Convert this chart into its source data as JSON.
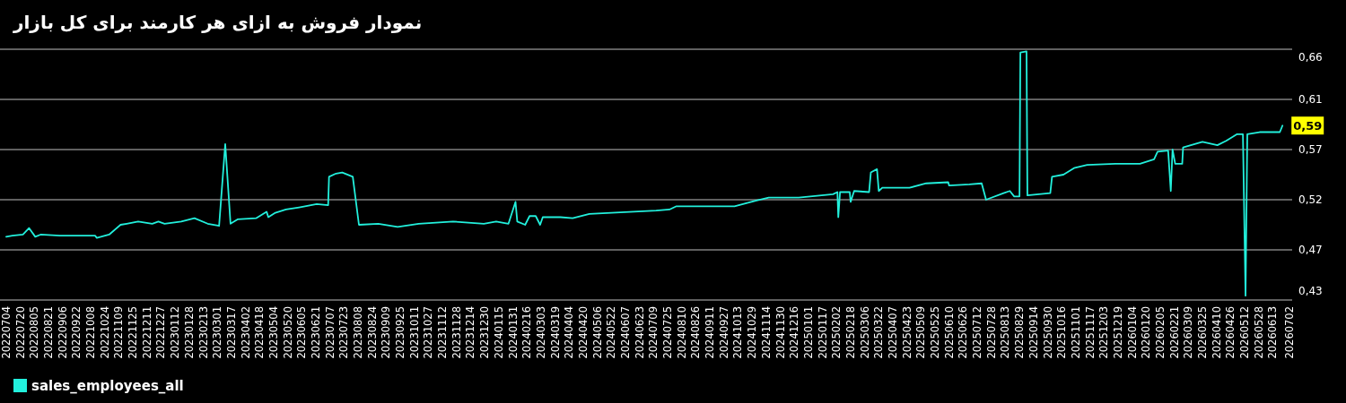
{
  "chart_data": {
    "type": "line",
    "title": "نمودار فروش به ازای هر کارمند برای کل بازار",
    "legend": "bottom left",
    "grid": "y",
    "line_style": "solid",
    "marker": "none",
    "xlim": [
      "2022-07-01",
      "2026-07-05"
    ],
    "ylim": [
      0.428,
      0.658
    ],
    "yticks": [
      {
        "value": 0.428,
        "label": "0,43"
      },
      {
        "value": 0.474,
        "label": "0,47"
      },
      {
        "value": 0.52,
        "label": "0,52"
      },
      {
        "value": 0.566,
        "label": "0,57"
      },
      {
        "value": 0.612,
        "label": "0,61"
      },
      {
        "value": 0.658,
        "label": "0,66"
      }
    ],
    "xticks": [
      {
        "value": "2022-07-04",
        "label": "20220704"
      },
      {
        "value": "2022-07-20",
        "label": "20220720"
      },
      {
        "value": "2022-08-05",
        "label": "20220805"
      },
      {
        "value": "2022-08-21",
        "label": "20220821"
      },
      {
        "value": "2022-09-06",
        "label": "20220906"
      },
      {
        "value": "2022-09-22",
        "label": "20220922"
      },
      {
        "value": "2022-10-08",
        "label": "20221008"
      },
      {
        "value": "2022-10-24",
        "label": "20221024"
      },
      {
        "value": "2022-11-09",
        "label": "20221109"
      },
      {
        "value": "2022-11-25",
        "label": "20221125"
      },
      {
        "value": "2022-12-11",
        "label": "20221211"
      },
      {
        "value": "2022-12-27",
        "label": "20221227"
      },
      {
        "value": "2023-01-12",
        "label": "20230112"
      },
      {
        "value": "2023-01-28",
        "label": "20230128"
      },
      {
        "value": "2023-02-13",
        "label": "20230213"
      },
      {
        "value": "2023-03-01",
        "label": "20230301"
      },
      {
        "value": "2023-03-17",
        "label": "20230317"
      },
      {
        "value": "2023-04-02",
        "label": "20230402"
      },
      {
        "value": "2023-04-18",
        "label": "20230418"
      },
      {
        "value": "2023-05-04",
        "label": "20230504"
      },
      {
        "value": "2023-05-20",
        "label": "20230520"
      },
      {
        "value": "2023-06-05",
        "label": "20230605"
      },
      {
        "value": "2023-06-21",
        "label": "20230621"
      },
      {
        "value": "2023-07-07",
        "label": "20230707"
      },
      {
        "value": "2023-07-23",
        "label": "20230723"
      },
      {
        "value": "2023-08-08",
        "label": "20230808"
      },
      {
        "value": "2023-08-24",
        "label": "20230824"
      },
      {
        "value": "2023-09-09",
        "label": "20230909"
      },
      {
        "value": "2023-09-25",
        "label": "20230925"
      },
      {
        "value": "2023-10-11",
        "label": "20231011"
      },
      {
        "value": "2023-10-27",
        "label": "20231027"
      },
      {
        "value": "2023-11-12",
        "label": "20231112"
      },
      {
        "value": "2023-11-28",
        "label": "20231128"
      },
      {
        "value": "2023-12-14",
        "label": "20231214"
      },
      {
        "value": "2023-12-30",
        "label": "20231230"
      },
      {
        "value": "2024-01-15",
        "label": "20240115"
      },
      {
        "value": "2024-01-31",
        "label": "20240131"
      },
      {
        "value": "2024-02-16",
        "label": "20240216"
      },
      {
        "value": "2024-03-03",
        "label": "20240303"
      },
      {
        "value": "2024-03-19",
        "label": "20240319"
      },
      {
        "value": "2024-04-04",
        "label": "20240404"
      },
      {
        "value": "2024-04-20",
        "label": "20240420"
      },
      {
        "value": "2024-05-06",
        "label": "20240506"
      },
      {
        "value": "2024-05-22",
        "label": "20240522"
      },
      {
        "value": "2024-06-07",
        "label": "20240607"
      },
      {
        "value": "2024-06-23",
        "label": "20240623"
      },
      {
        "value": "2024-07-09",
        "label": "20240709"
      },
      {
        "value": "2024-07-25",
        "label": "20240725"
      },
      {
        "value": "2024-08-10",
        "label": "20240810"
      },
      {
        "value": "2024-08-26",
        "label": "20240826"
      },
      {
        "value": "2024-09-11",
        "label": "20240911"
      },
      {
        "value": "2024-09-27",
        "label": "20240927"
      },
      {
        "value": "2024-10-13",
        "label": "20241013"
      },
      {
        "value": "2024-10-29",
        "label": "20241029"
      },
      {
        "value": "2024-11-14",
        "label": "20241114"
      },
      {
        "value": "2024-11-30",
        "label": "20241130"
      },
      {
        "value": "2024-12-16",
        "label": "20241216"
      },
      {
        "value": "2025-01-01",
        "label": "20250101"
      },
      {
        "value": "2025-01-17",
        "label": "20250117"
      },
      {
        "value": "2025-02-02",
        "label": "20250202"
      },
      {
        "value": "2025-02-18",
        "label": "20250218"
      },
      {
        "value": "2025-03-06",
        "label": "20250306"
      },
      {
        "value": "2025-03-22",
        "label": "20250322"
      },
      {
        "value": "2025-04-07",
        "label": "20250407"
      },
      {
        "value": "2025-04-23",
        "label": "20250423"
      },
      {
        "value": "2025-05-09",
        "label": "20250509"
      },
      {
        "value": "2025-05-25",
        "label": "20250525"
      },
      {
        "value": "2025-06-10",
        "label": "20250610"
      },
      {
        "value": "2025-06-26",
        "label": "20250626"
      },
      {
        "value": "2025-07-12",
        "label": "20250712"
      },
      {
        "value": "2025-07-28",
        "label": "20250728"
      },
      {
        "value": "2025-08-13",
        "label": "20250813"
      },
      {
        "value": "2025-08-29",
        "label": "20250829"
      },
      {
        "value": "2025-09-14",
        "label": "20250914"
      },
      {
        "value": "2025-09-30",
        "label": "20250930"
      },
      {
        "value": "2025-10-16",
        "label": "20251016"
      },
      {
        "value": "2025-11-01",
        "label": "20251101"
      },
      {
        "value": "2025-11-17",
        "label": "20251117"
      },
      {
        "value": "2025-12-03",
        "label": "20251203"
      },
      {
        "value": "2025-12-19",
        "label": "20251219"
      },
      {
        "value": "2026-01-04",
        "label": "20260104"
      },
      {
        "value": "2026-01-20",
        "label": "20260120"
      },
      {
        "value": "2026-02-05",
        "label": "20260205"
      },
      {
        "value": "2026-02-21",
        "label": "20260221"
      },
      {
        "value": "2026-03-09",
        "label": "20260309"
      },
      {
        "value": "2026-03-25",
        "label": "20260325"
      },
      {
        "value": "2026-04-10",
        "label": "20260410"
      },
      {
        "value": "2026-04-26",
        "label": "20260426"
      },
      {
        "value": "2026-05-12",
        "label": "20260512"
      },
      {
        "value": "2026-05-28",
        "label": "20260528"
      },
      {
        "value": "2026-06-13",
        "label": "20260613"
      },
      {
        "value": "2026-07-02",
        "label": "20260702"
      }
    ],
    "annotations": [
      {
        "text": "0,59",
        "x": "2026-06-24",
        "y": 0.588
      }
    ],
    "series": [
      {
        "name": "sales_employees_all",
        "color": "#22f0dc",
        "x": [
          "2022-07-04",
          "2022-07-11",
          "2022-07-23",
          "2022-07-30",
          "2022-08-06",
          "2022-08-12",
          "2022-09-03",
          "2022-10-13",
          "2022-10-15",
          "2022-10-29",
          "2022-11-11",
          "2022-11-18",
          "2022-12-01",
          "2022-12-17",
          "2022-12-24",
          "2022-12-31",
          "2023-01-19",
          "2023-02-03",
          "2023-02-18",
          "2023-03-03",
          "2023-03-10",
          "2023-03-16",
          "2023-03-24",
          "2023-04-14",
          "2023-04-26",
          "2023-04-28",
          "2023-05-06",
          "2023-05-18",
          "2023-06-02",
          "2023-06-22",
          "2023-07-05",
          "2023-07-06",
          "2023-07-14",
          "2023-07-21",
          "2023-08-02",
          "2023-08-09",
          "2023-08-31",
          "2023-09-22",
          "2023-10-16",
          "2023-11-24",
          "2023-12-29",
          "2024-01-12",
          "2024-01-26",
          "2024-02-03",
          "2024-02-05",
          "2024-02-14",
          "2024-02-19",
          "2024-02-26",
          "2024-03-02",
          "2024-03-05",
          "2024-03-25",
          "2024-04-08",
          "2024-04-27",
          "2024-05-22",
          "2024-07-12",
          "2024-07-27",
          "2024-08-04",
          "2024-10-09",
          "2024-11-02",
          "2024-11-17",
          "2024-12-21",
          "2025-01-29",
          "2025-02-03",
          "2025-02-04",
          "2025-02-06",
          "2025-02-17",
          "2025-02-18",
          "2025-02-22",
          "2025-03-11",
          "2025-03-13",
          "2025-03-20",
          "2025-03-22",
          "2025-03-26",
          "2025-04-26",
          "2025-05-15",
          "2025-06-09",
          "2025-06-10",
          "2025-07-03",
          "2025-07-17",
          "2025-07-22",
          "2025-08-11",
          "2025-08-18",
          "2025-08-23",
          "2025-08-29",
          "2025-08-30",
          "2025-09-06",
          "2025-09-07",
          "2025-10-03",
          "2025-10-05",
          "2025-10-18",
          "2025-10-30",
          "2025-11-14",
          "2025-12-16",
          "2026-01-13",
          "2026-01-29",
          "2026-02-02",
          "2026-02-14",
          "2026-02-17",
          "2026-02-19",
          "2026-02-22",
          "2026-03-02",
          "2026-03-03",
          "2026-03-25",
          "2026-04-11",
          "2026-04-21",
          "2026-05-03",
          "2026-05-10",
          "2026-05-13",
          "2026-05-15",
          "2026-05-29",
          "2026-06-21",
          "2026-06-24"
        ],
        "values": [
          0.486,
          0.487,
          0.488,
          0.494,
          0.486,
          0.488,
          0.487,
          0.487,
          0.485,
          0.488,
          0.497,
          0.498,
          0.5,
          0.498,
          0.5,
          0.498,
          0.5,
          0.503,
          0.498,
          0.496,
          0.571,
          0.498,
          0.502,
          0.503,
          0.509,
          0.504,
          0.508,
          0.511,
          0.513,
          0.516,
          0.515,
          0.541,
          0.544,
          0.545,
          0.541,
          0.497,
          0.498,
          0.495,
          0.498,
          0.5,
          0.498,
          0.5,
          0.498,
          0.518,
          0.5,
          0.497,
          0.505,
          0.505,
          0.497,
          0.504,
          0.504,
          0.503,
          0.507,
          0.508,
          0.51,
          0.511,
          0.514,
          0.514,
          0.519,
          0.522,
          0.522,
          0.525,
          0.527,
          0.504,
          0.527,
          0.527,
          0.518,
          0.528,
          0.527,
          0.545,
          0.548,
          0.528,
          0.531,
          0.531,
          0.535,
          0.536,
          0.533,
          0.534,
          0.535,
          0.52,
          0.526,
          0.528,
          0.523,
          0.523,
          0.655,
          0.656,
          0.524,
          0.526,
          0.541,
          0.543,
          0.549,
          0.552,
          0.553,
          0.553,
          0.557,
          0.564,
          0.565,
          0.528,
          0.566,
          0.553,
          0.553,
          0.568,
          0.573,
          0.57,
          0.574,
          0.58,
          0.58,
          0.432,
          0.58,
          0.582,
          0.582,
          0.588
        ]
      }
    ]
  }
}
